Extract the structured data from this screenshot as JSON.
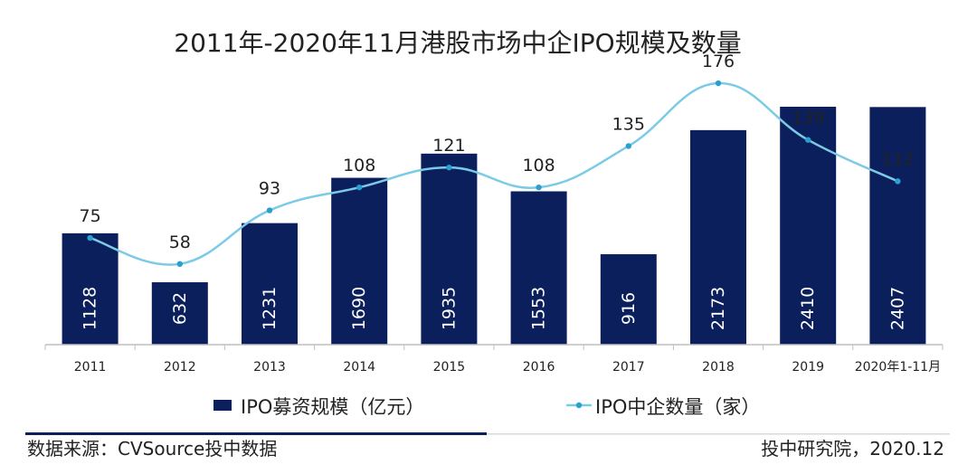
{
  "chart_data": {
    "type": "bar",
    "title": "2011年-2020年11月港股市场中企IPO规模及数量",
    "categories": [
      "2011",
      "2012",
      "2013",
      "2014",
      "2015",
      "2016",
      "2017",
      "2018",
      "2019",
      "2020年1-11月"
    ],
    "series": [
      {
        "name": "IPO募资规模（亿元）",
        "type": "bar",
        "values": [
          1128,
          632,
          1231,
          1690,
          1935,
          1553,
          916,
          2173,
          2410,
          2407
        ]
      },
      {
        "name": "IPO中企数量（家）",
        "type": "line",
        "values": [
          75,
          58,
          93,
          108,
          121,
          108,
          135,
          176,
          139,
          112
        ]
      }
    ],
    "legend_position": "bottom",
    "grid": false
  },
  "colors": {
    "bar": "#0b1f5c",
    "line": "#7ccbe6",
    "marker": "#2a9fd0",
    "bar_label": "#ffffff",
    "axis": "#bfbfbf",
    "text": "#222222",
    "rule_dark": "#0b1f5c",
    "rule_light": "#d9d9d9"
  },
  "footer": {
    "source": "数据来源：CVSource投中数据",
    "publisher": "投中研究院，2020.12"
  }
}
